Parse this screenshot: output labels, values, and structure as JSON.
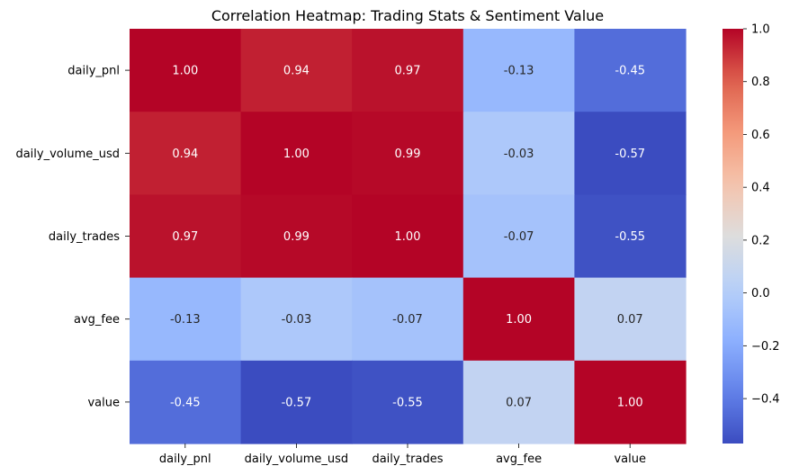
{
  "chart_data": {
    "type": "heatmap",
    "title": "Correlation Heatmap: Trading Stats & Sentiment Value",
    "x_labels": [
      "daily_pnl",
      "daily_volume_usd",
      "daily_trades",
      "avg_fee",
      "value"
    ],
    "y_labels": [
      "daily_pnl",
      "daily_volume_usd",
      "daily_trades",
      "avg_fee",
      "value"
    ],
    "values": [
      [
        1.0,
        0.94,
        0.97,
        -0.13,
        -0.45
      ],
      [
        0.94,
        1.0,
        0.99,
        -0.03,
        -0.57
      ],
      [
        0.97,
        0.99,
        1.0,
        -0.07,
        -0.55
      ],
      [
        -0.13,
        -0.03,
        -0.07,
        1.0,
        0.07
      ],
      [
        -0.45,
        -0.57,
        -0.55,
        0.07,
        1.0
      ]
    ],
    "value_labels": [
      [
        "1.00",
        "0.94",
        "0.97",
        "-0.13",
        "-0.45"
      ],
      [
        "0.94",
        "1.00",
        "0.99",
        "-0.03",
        "-0.57"
      ],
      [
        "0.97",
        "0.99",
        "1.00",
        "-0.07",
        "-0.55"
      ],
      [
        "-0.13",
        "-0.03",
        "-0.07",
        "1.00",
        "0.07"
      ],
      [
        "-0.45",
        "-0.57",
        "-0.55",
        "0.07",
        "1.00"
      ]
    ],
    "colormap": "coolwarm",
    "vmin": -0.57,
    "vmax": 1.0,
    "colorbar_ticks": [
      1.0,
      0.8,
      0.6,
      0.4,
      0.2,
      0.0,
      -0.2,
      -0.4
    ],
    "colorbar_tick_labels": [
      "1.0",
      "0.8",
      "0.6",
      "0.4",
      "0.2",
      "0.0",
      "−0.2",
      "−0.4"
    ],
    "colorbar_placement": "right",
    "grid": false
  }
}
